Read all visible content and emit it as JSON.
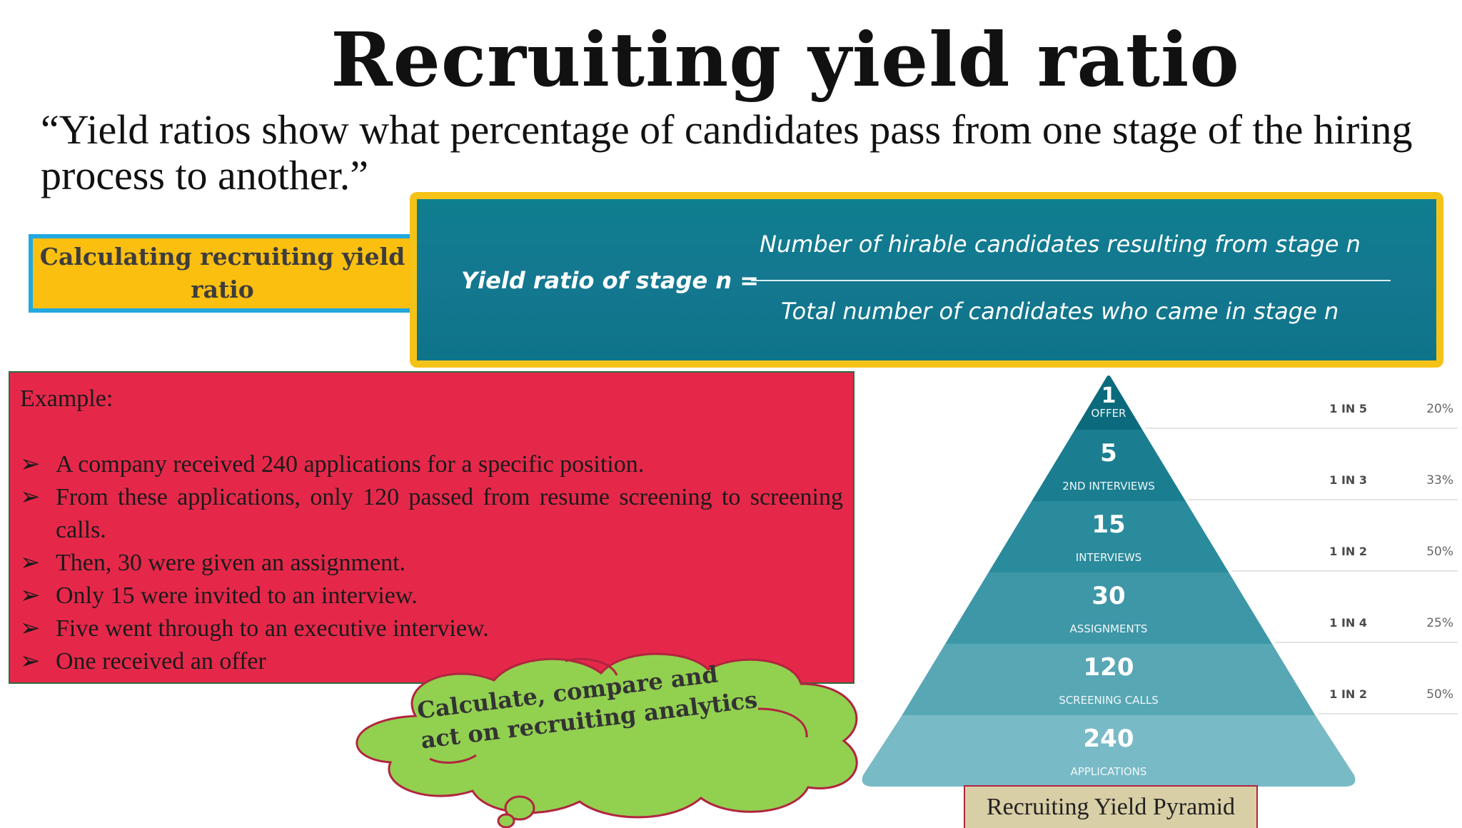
{
  "title": "Recruiting yield ratio",
  "quote": "“Yield ratios show what percentage of candidates pass from one stage of the hiring process to another.”",
  "calc_label": "Calculating recruiting yield ratio",
  "formula": {
    "lhs": "Yield ratio of stage n =",
    "numerator": "Number of hirable candidates resulting from stage n",
    "denominator": "Total number of candidates who came in stage n"
  },
  "example": {
    "heading": "Example:",
    "bullet_symbol": "➢",
    "items": [
      "A company received 240 applications for a specific position.",
      "From these applications, only 120 passed from resume screening to screening calls.",
      "Then, 30 were given an assignment.",
      "Only 15 were invited to an interview.",
      "Five went through to an executive interview.",
      "One received an offer"
    ]
  },
  "cloud_text": "Calculate, compare and act on recruiting analytics",
  "pyramid": {
    "tiers": [
      {
        "value": "1",
        "label": "OFFER"
      },
      {
        "value": "5",
        "label": "2ND INTERVIEWS"
      },
      {
        "value": "15",
        "label": "INTERVIEWS"
      },
      {
        "value": "30",
        "label": "ASSIGNMENTS"
      },
      {
        "value": "120",
        "label": "SCREENING CALLS"
      },
      {
        "value": "240",
        "label": "APPLICATIONS"
      }
    ],
    "ratios": [
      {
        "ratio": "1 IN 5",
        "percent": "20%"
      },
      {
        "ratio": "1 IN 3",
        "percent": "33%"
      },
      {
        "ratio": "1 IN 2",
        "percent": "50%"
      },
      {
        "ratio": "1 IN 4",
        "percent": "25%"
      },
      {
        "ratio": "1 IN 2",
        "percent": "50%"
      }
    ],
    "caption": "Recruiting Yield Pyramid"
  },
  "colors": {
    "example_bg": "#e5284a",
    "cloud_fill": "#92d050",
    "formula_bg": "#0f7e8f",
    "calc_label_bg": "#fbbf0f"
  }
}
